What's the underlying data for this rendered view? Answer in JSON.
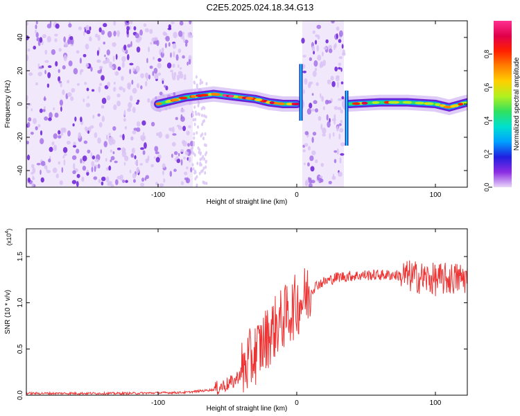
{
  "title": "C2E5.2025.024.18.34.G13",
  "chart_data": [
    {
      "type": "heatmap",
      "panel": "spectrogram",
      "xlabel": "Height of straight line (km)",
      "ylabel": "Frequency (Hz)",
      "xlim": [
        -195,
        123
      ],
      "ylim": [
        -50,
        50
      ],
      "xticks": [
        -100,
        0,
        100
      ],
      "yticks": [
        -40,
        -20,
        0,
        20,
        40
      ],
      "colorbar": {
        "label": "Normalized spectral amplitude",
        "range": [
          0,
          1
        ],
        "ticks": [
          0,
          0.2,
          0.4,
          0.6,
          0.8
        ],
        "colormap": "rainbow",
        "colors": [
          "#e8d6f8",
          "#8b2be2",
          "#1f1fe0",
          "#00a0ff",
          "#00e0d0",
          "#30e060",
          "#b0f020",
          "#ffd000",
          "#ff8000",
          "#ff2000",
          "#e0004a",
          "#ff3090"
        ]
      },
      "noise_regions": [
        [
          -195,
          -75
        ],
        [
          4,
          34
        ]
      ],
      "ridge": [
        {
          "x": -100,
          "y": 0
        },
        {
          "x": -90,
          "y": 2
        },
        {
          "x": -80,
          "y": 4
        },
        {
          "x": -70,
          "y": 5
        },
        {
          "x": -60,
          "y": 6
        },
        {
          "x": -50,
          "y": 5
        },
        {
          "x": -40,
          "y": 4
        },
        {
          "x": -30,
          "y": 3
        },
        {
          "x": -20,
          "y": 1
        },
        {
          "x": -10,
          "y": 0
        },
        {
          "x": 0,
          "y": 0
        }
      ],
      "ridge_after": [
        {
          "x": 38,
          "y": 0
        },
        {
          "x": 60,
          "y": 1
        },
        {
          "x": 80,
          "y": 1
        },
        {
          "x": 100,
          "y": 0
        },
        {
          "x": 110,
          "y": -2
        },
        {
          "x": 123,
          "y": 1
        }
      ],
      "transients": [
        {
          "x": 3,
          "from": -10,
          "to": 24
        },
        {
          "x": 36,
          "from": -25,
          "to": 8
        }
      ]
    },
    {
      "type": "line",
      "panel": "snr",
      "xlabel": "Height of straight line (km)",
      "ylabel": "SNR (10 * v/v)",
      "multiplier_label": "(x10",
      "multiplier_exp": "4",
      "xlim": [
        -195,
        123
      ],
      "ylim": [
        0,
        1.8
      ],
      "xticks": [
        -100,
        0,
        100
      ],
      "yticks": [
        0,
        0.5,
        1,
        1.5
      ],
      "ytick_labels": [
        "0.0",
        "0.5",
        "1.0",
        "1.5"
      ],
      "color": "#ee3333",
      "series": [
        {
          "x": [
            -195,
            -120,
            -80,
            -60,
            -45,
            -35,
            -25,
            -15,
            -5,
            5,
            15,
            30,
            50,
            70,
            85,
            100,
            123
          ],
          "values": [
            0.02,
            0.02,
            0.03,
            0.06,
            0.15,
            0.35,
            0.55,
            0.75,
            0.9,
            1.05,
            1.2,
            1.28,
            1.3,
            1.3,
            1.28,
            1.25,
            1.27
          ]
        }
      ]
    }
  ]
}
